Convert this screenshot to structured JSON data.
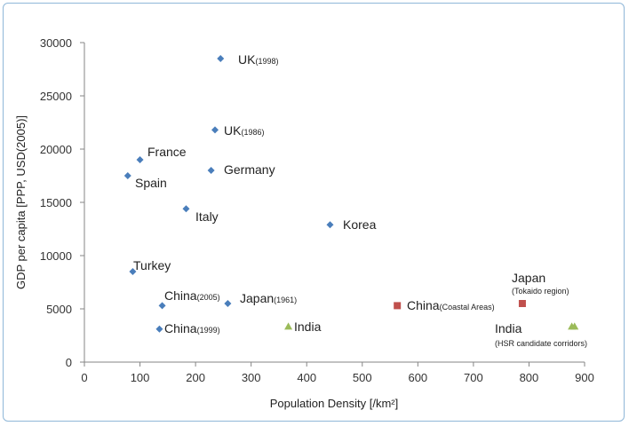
{
  "chart_data": {
    "type": "scatter",
    "xlabel": "Population Density [/km²]",
    "ylabel": "GDP per capita [PPP, USD(2005)]",
    "xlim": [
      0,
      900
    ],
    "ylim": [
      0,
      30000
    ],
    "x_ticks": [
      "0",
      "100",
      "200",
      "300",
      "400",
      "500",
      "600",
      "700",
      "800",
      "900"
    ],
    "y_ticks": [
      "0",
      "5000",
      "10000",
      "15000",
      "20000",
      "25000",
      "30000"
    ],
    "grid": false,
    "series": [
      {
        "marker": "diamond",
        "color": "#4a7ebb",
        "points": [
          {
            "x": 245,
            "y": 28500,
            "label": "UK",
            "label_sub": "(1998)"
          },
          {
            "x": 235,
            "y": 21800,
            "label": "UK",
            "label_sub": "(1986)"
          },
          {
            "x": 100,
            "y": 19000,
            "label": "France",
            "label_sub": ""
          },
          {
            "x": 228,
            "y": 18000,
            "label": "Germany",
            "label_sub": ""
          },
          {
            "x": 78,
            "y": 17500,
            "label": "Spain",
            "label_sub": ""
          },
          {
            "x": 183,
            "y": 14400,
            "label": "Italy",
            "label_sub": ""
          },
          {
            "x": 442,
            "y": 12900,
            "label": "Korea",
            "label_sub": ""
          },
          {
            "x": 87,
            "y": 8500,
            "label": "Turkey",
            "label_sub": ""
          },
          {
            "x": 140,
            "y": 5300,
            "label": "China",
            "label_sub": "(2005)"
          },
          {
            "x": 258,
            "y": 5500,
            "label": "Japan",
            "label_sub": "(1961)"
          },
          {
            "x": 135,
            "y": 3100,
            "label": "China",
            "label_sub": "(1999)"
          }
        ]
      },
      {
        "marker": "square",
        "color": "#c0504d",
        "points": [
          {
            "x": 563,
            "y": 5300,
            "label": "China",
            "label_sub": "(Coastal Areas)"
          },
          {
            "x": 788,
            "y": 5500,
            "label": "Japan",
            "label_sub": "(Tokaido region)"
          }
        ]
      },
      {
        "marker": "triangle",
        "color": "#9bbb59",
        "points": [
          {
            "x": 367,
            "y": 3300,
            "label": "India",
            "label_sub": ""
          },
          {
            "x": 877,
            "y": 3300,
            "label": "India",
            "label_sub": "(HSR candidate corridors)"
          },
          {
            "x": 882,
            "y": 3300,
            "label": "",
            "label_sub": ""
          }
        ]
      }
    ]
  }
}
